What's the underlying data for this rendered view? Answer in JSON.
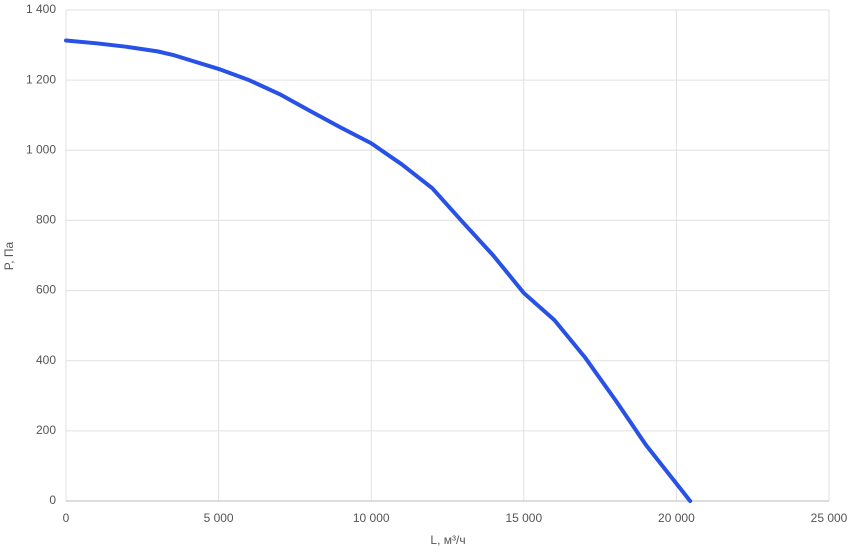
{
  "chart_data": {
    "type": "line",
    "x_label": "L, м³/ч",
    "y_label": "P, Па",
    "x": [
      0,
      1000,
      2000,
      3000,
      3500,
      5000,
      6000,
      7000,
      8000,
      9000,
      10000,
      11000,
      12000,
      13000,
      14000,
      15000,
      16000,
      17000,
      18000,
      19000,
      20450
    ],
    "series": [
      {
        "color": "#2851e6",
        "values": [
          1313,
          1305,
          1295,
          1282,
          1272,
          1232,
          1200,
          1160,
          1112,
          1065,
          1020,
          960,
          892,
          795,
          700,
          593,
          516,
          410,
          288,
          160,
          0
        ]
      }
    ],
    "xlim": [
      0,
      25000
    ],
    "ylim": [
      0,
      1400
    ],
    "xticks": [
      0,
      {
        "value": 5000,
        "label": "5 000"
      },
      {
        "value": 10000,
        "label": "10 000"
      },
      {
        "value": 15000,
        "label": "15 000"
      },
      {
        "value": 20000,
        "label": "20 000"
      },
      {
        "value": 25000,
        "label": "25 000"
      }
    ],
    "yticks": [
      0,
      200,
      400,
      600,
      800,
      {
        "value": 1000,
        "label": "1 000"
      },
      {
        "value": 1200,
        "label": "1 200"
      },
      {
        "value": 1400,
        "label": "1 400"
      }
    ],
    "grid": true
  }
}
